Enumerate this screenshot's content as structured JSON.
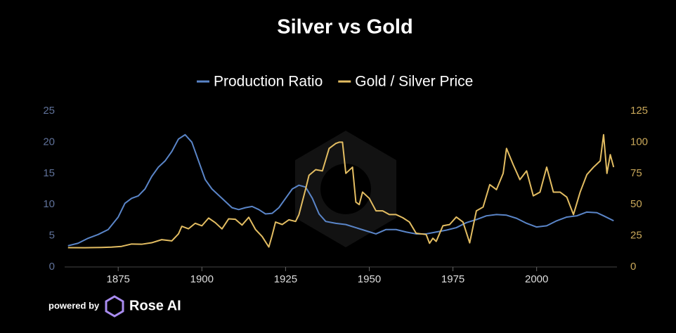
{
  "chart_data": {
    "type": "line",
    "title": "Silver vs Gold",
    "legend": "top",
    "series": [
      {
        "name": "Production Ratio",
        "color": "#5a85c8",
        "axis": "y",
        "x": [
          1860,
          1863,
          1866,
          1869,
          1872,
          1875,
          1877,
          1879,
          1881,
          1883,
          1885,
          1887,
          1889,
          1891,
          1893,
          1895,
          1897,
          1899,
          1901,
          1903,
          1905,
          1907,
          1909,
          1911,
          1913,
          1915,
          1917,
          1919,
          1921,
          1923,
          1925,
          1927,
          1929,
          1931,
          1933,
          1935,
          1937,
          1940,
          1943,
          1946,
          1949,
          1952,
          1955,
          1958,
          1961,
          1964,
          1967,
          1970,
          1973,
          1976,
          1979,
          1982,
          1985,
          1988,
          1991,
          1994,
          1997,
          2000,
          2003,
          2006,
          2009,
          2012,
          2015,
          2018,
          2020,
          2023
        ],
        "values": [
          3.4,
          3.8,
          4.6,
          5.2,
          6.0,
          8.0,
          10.2,
          11.0,
          11.4,
          12.5,
          14.5,
          16.0,
          17.0,
          18.5,
          20.5,
          21.2,
          20.0,
          17.0,
          14.0,
          12.5,
          11.5,
          10.5,
          9.5,
          9.2,
          9.5,
          9.7,
          9.2,
          8.5,
          8.6,
          9.5,
          11.0,
          12.5,
          13.1,
          12.8,
          11.0,
          8.5,
          7.3,
          7.0,
          6.8,
          6.3,
          5.8,
          5.3,
          6.0,
          6.0,
          5.6,
          5.3,
          5.3,
          5.6,
          5.9,
          6.3,
          7.1,
          7.6,
          8.2,
          8.4,
          8.3,
          7.8,
          7.0,
          6.4,
          6.6,
          7.4,
          8.0,
          8.2,
          8.8,
          8.7,
          8.2,
          7.4
        ]
      },
      {
        "name": "Gold / Silver Price",
        "color": "#e3bd62",
        "axis": "y2",
        "x": [
          1860,
          1865,
          1870,
          1873,
          1876,
          1879,
          1882,
          1885,
          1888,
          1891,
          1893,
          1894,
          1896,
          1898,
          1900,
          1902,
          1904,
          1906,
          1908,
          1910,
          1912,
          1914,
          1916,
          1918,
          1920,
          1921,
          1922,
          1924,
          1926,
          1928,
          1929,
          1931,
          1932,
          1934,
          1936,
          1938,
          1940,
          1941,
          1942,
          1943,
          1945,
          1946,
          1947,
          1948,
          1950,
          1952,
          1954,
          1956,
          1958,
          1960,
          1962,
          1964,
          1967,
          1968,
          1969,
          1970,
          1972,
          1974,
          1976,
          1978,
          1980,
          1982,
          1984,
          1986,
          1988,
          1990,
          1991,
          1993,
          1995,
          1997,
          1999,
          2001,
          2003,
          2005,
          2007,
          2009,
          2011,
          2013,
          2015,
          2017,
          2019,
          2020,
          2021,
          2022,
          2023
        ],
        "values": [
          15.5,
          15.4,
          15.6,
          15.9,
          16.5,
          18.4,
          18.2,
          19.4,
          21.9,
          20.9,
          26.5,
          32.6,
          30.6,
          35,
          33,
          39.2,
          35.5,
          30.5,
          38.6,
          38.2,
          33.6,
          39.8,
          30.1,
          24.4,
          16,
          25.5,
          36,
          34,
          37.8,
          36.5,
          42,
          62.6,
          73.5,
          78,
          77,
          95,
          99,
          100,
          100,
          75,
          80,
          52,
          50,
          60,
          55,
          45,
          45,
          42,
          42,
          39.5,
          36,
          27,
          26,
          19,
          23,
          20.5,
          33,
          34,
          40,
          36,
          19.3,
          45,
          48,
          66,
          62,
          75,
          95,
          82,
          70,
          77,
          57,
          60,
          80,
          60,
          60,
          56,
          42,
          60,
          74,
          80,
          85,
          106,
          75,
          90,
          80
        ]
      }
    ],
    "xlim": [
      1859,
      2024
    ],
    "xticks": [
      1875,
      1900,
      1925,
      1950,
      1975,
      2000
    ],
    "ylim": [
      0,
      25
    ],
    "yticks": [
      0,
      5,
      10,
      15,
      20,
      25
    ],
    "y2lim": [
      0,
      125
    ],
    "y2ticks": [
      0,
      25,
      50,
      75,
      100,
      125
    ]
  },
  "branding": {
    "prefix": "powered by",
    "name": "Rose AI"
  }
}
